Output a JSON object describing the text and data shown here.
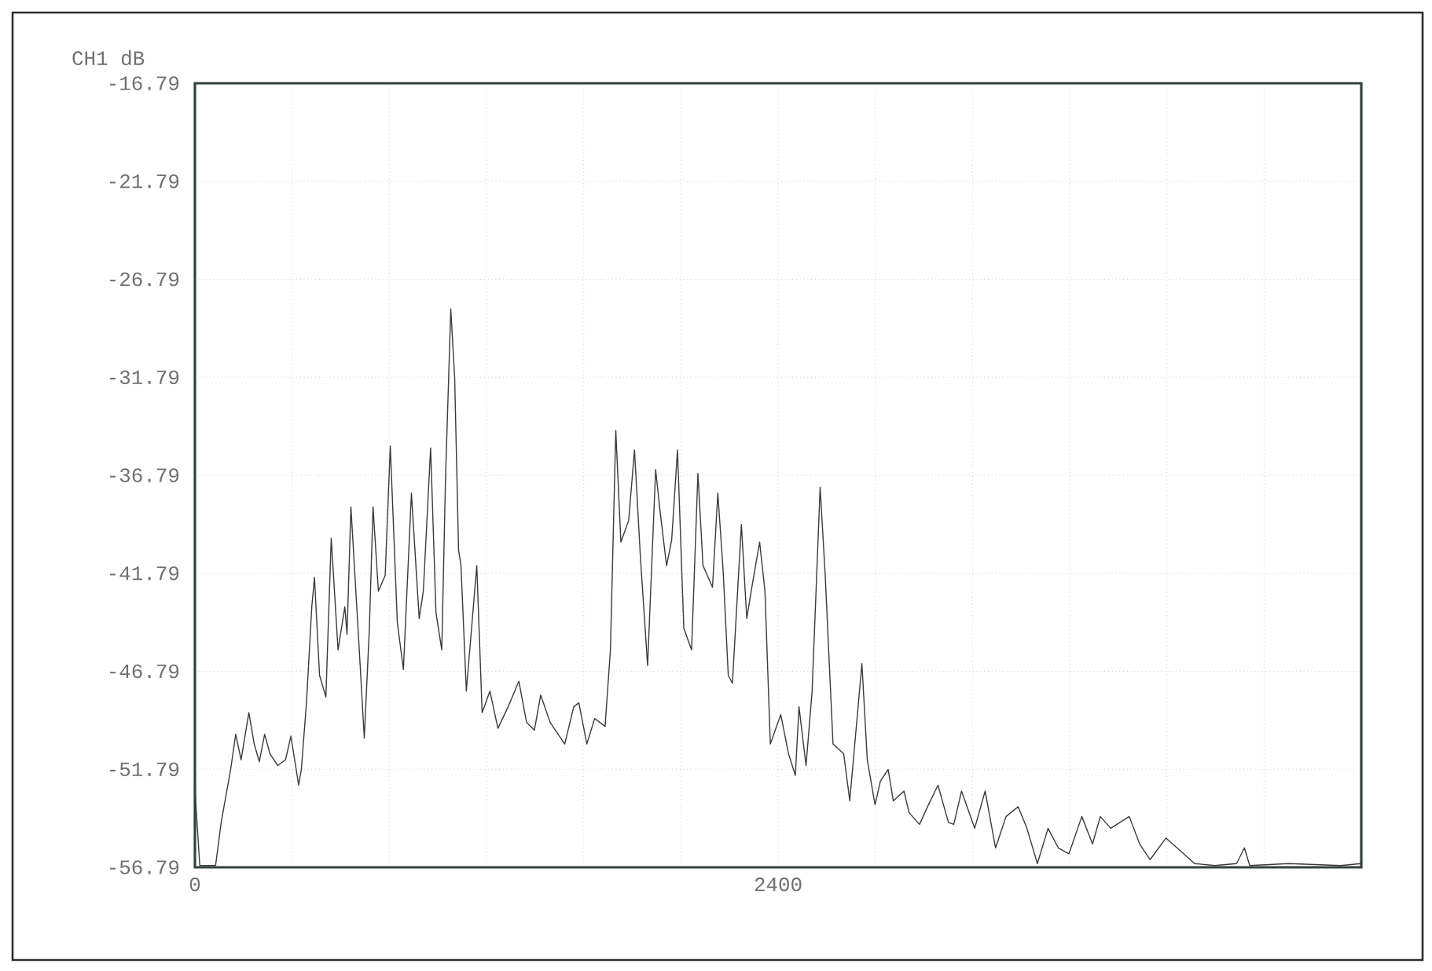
{
  "chart_data": {
    "type": "line",
    "ylabel": "CH1 dB",
    "xlim": [
      0,
      4800
    ],
    "ylim": [
      -56.79,
      -16.79
    ],
    "xticks": [
      0,
      {
        "value": 400,
        "label": null
      },
      {
        "value": 800,
        "label": null
      },
      {
        "value": 1200,
        "label": null
      },
      {
        "value": 1600,
        "label": null
      },
      {
        "value": 2000,
        "label": null
      },
      2400,
      {
        "value": 2800,
        "label": null
      },
      {
        "value": 3200,
        "label": null
      },
      {
        "value": 3600,
        "label": null
      },
      {
        "value": 4000,
        "label": null
      },
      {
        "value": 4400,
        "label": null
      },
      {
        "value": 4800,
        "label": null
      }
    ],
    "yticks": [
      -56.79,
      -51.79,
      -46.79,
      -41.79,
      -36.79,
      -31.79,
      -26.79,
      -21.79,
      -16.79
    ],
    "grid": true,
    "marker": "none",
    "x": [
      0,
      20,
      85,
      108,
      147,
      168,
      190,
      222,
      244,
      265,
      287,
      309,
      341,
      373,
      395,
      427,
      438,
      459,
      481,
      492,
      513,
      539,
      561,
      589,
      617,
      626,
      642,
      675,
      697,
      718,
      733,
      755,
      783,
      804,
      833,
      858,
      891,
      923,
      940,
      970,
      992,
      1016,
      1031,
      1053,
      1069,
      1085,
      1095,
      1117,
      1160,
      1182,
      1214,
      1247,
      1289,
      1333,
      1365,
      1397,
      1423,
      1462,
      1522,
      1559,
      1580,
      1613,
      1645,
      1688,
      1710,
      1732,
      1753,
      1785,
      1809,
      1834,
      1863,
      1896,
      1915,
      1941,
      1962,
      1986,
      2012,
      2044,
      2070,
      2091,
      2130,
      2152,
      2174,
      2195,
      2212,
      2227,
      2249,
      2271,
      2292,
      2324,
      2346,
      2368,
      2411,
      2443,
      2471,
      2486,
      2515,
      2540,
      2573,
      2594,
      2626,
      2670,
      2695,
      2712,
      2745,
      2767,
      2799,
      2821,
      2853,
      2874,
      2918,
      2939,
      2982,
      3015,
      3058,
      3101,
      3123,
      3155,
      3209,
      3252,
      3295,
      3338,
      3388,
      3424,
      3467,
      3511,
      3553,
      3597,
      3650,
      3694,
      3726,
      3769,
      3845,
      3888,
      3931,
      3996,
      4060,
      4114,
      4198,
      4287,
      4319,
      4341,
      4502,
      4716,
      4800
    ],
    "series": [
      {
        "color": "#3a3a3a",
        "values": [
          -52.8,
          -56.7,
          -56.7,
          -54.5,
          -51.8,
          -50.0,
          -51.3,
          -48.9,
          -50.5,
          -51.4,
          -50.0,
          -51.0,
          -51.6,
          -51.3,
          -50.1,
          -52.6,
          -51.8,
          -48.4,
          -43.5,
          -42.0,
          -47.0,
          -48.1,
          -40.0,
          -45.7,
          -43.5,
          -44.9,
          -38.4,
          -45.4,
          -50.2,
          -44.6,
          -38.4,
          -42.7,
          -41.9,
          -35.3,
          -44.3,
          -46.7,
          -37.7,
          -44.1,
          -42.7,
          -35.4,
          -43.8,
          -45.7,
          -37.1,
          -28.3,
          -31.8,
          -40.6,
          -41.4,
          -47.8,
          -41.4,
          -48.9,
          -47.8,
          -49.7,
          -48.6,
          -47.3,
          -49.4,
          -49.8,
          -48.0,
          -49.4,
          -50.5,
          -48.6,
          -48.4,
          -50.5,
          -49.2,
          -49.6,
          -45.7,
          -34.5,
          -40.2,
          -39.1,
          -35.5,
          -41.1,
          -46.5,
          -36.5,
          -38.7,
          -41.4,
          -40.1,
          -35.5,
          -44.6,
          -45.7,
          -36.7,
          -41.4,
          -42.5,
          -37.7,
          -41.7,
          -47.0,
          -47.4,
          -44.1,
          -39.3,
          -44.1,
          -42.5,
          -40.2,
          -42.7,
          -50.5,
          -49.0,
          -51.0,
          -52.1,
          -48.6,
          -51.6,
          -47.8,
          -37.4,
          -41.9,
          -50.5,
          -51.0,
          -53.4,
          -51.0,
          -46.4,
          -51.3,
          -53.6,
          -52.4,
          -51.8,
          -53.4,
          -52.9,
          -54.0,
          -54.6,
          -53.7,
          -52.6,
          -54.5,
          -54.6,
          -52.9,
          -54.8,
          -52.9,
          -55.8,
          -54.2,
          -53.7,
          -54.8,
          -56.6,
          -54.8,
          -55.8,
          -56.1,
          -54.2,
          -55.6,
          -54.2,
          -54.8,
          -54.2,
          -55.6,
          -56.4,
          -55.3,
          -56.0,
          -56.6,
          -56.7,
          -56.6,
          -55.8,
          -56.7,
          -56.6,
          -56.7,
          -56.6
        ]
      }
    ]
  }
}
